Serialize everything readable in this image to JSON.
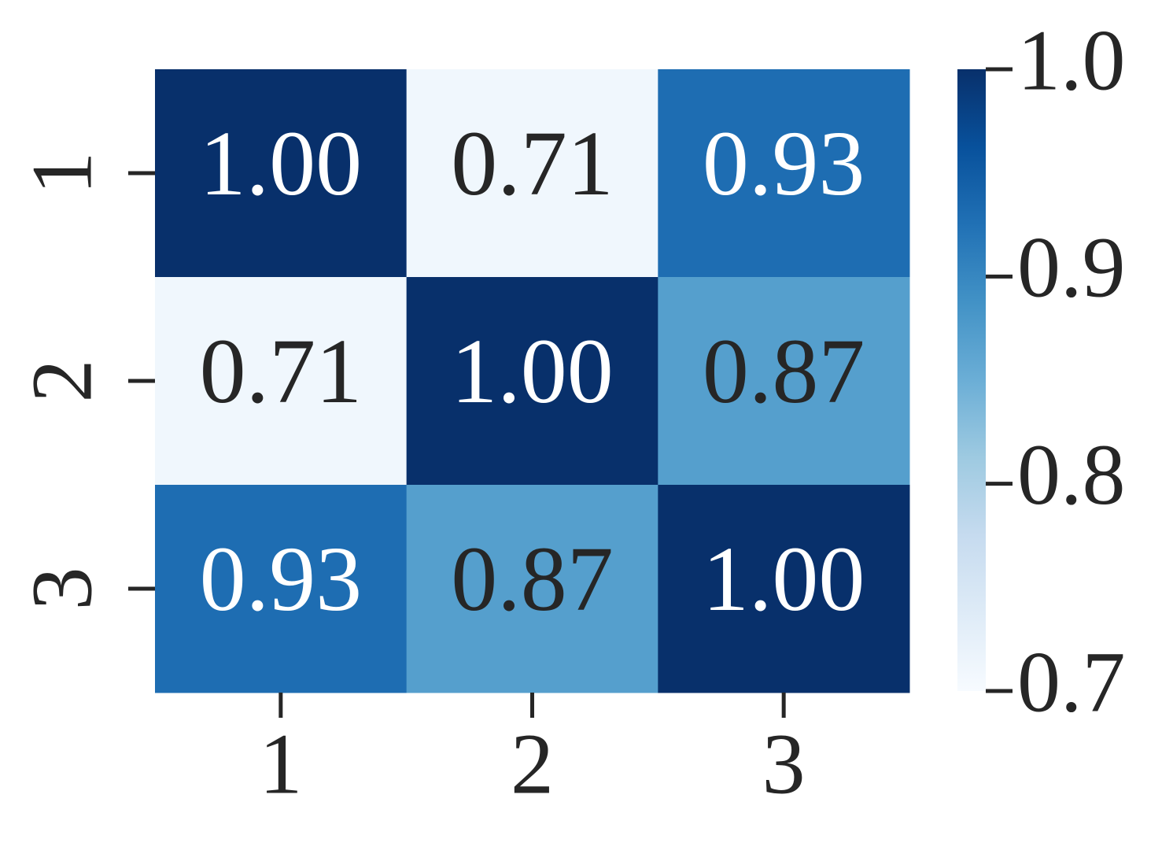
{
  "chart_data": {
    "type": "heatmap",
    "x_categories": [
      "1",
      "2",
      "3"
    ],
    "y_categories": [
      "1",
      "2",
      "3"
    ],
    "values": [
      [
        1.0,
        0.71,
        0.93
      ],
      [
        0.71,
        1.0,
        0.87
      ],
      [
        0.93,
        0.87,
        1.0
      ]
    ],
    "value_labels": [
      [
        "1.00",
        "0.71",
        "0.93"
      ],
      [
        "0.71",
        "1.00",
        "0.87"
      ],
      [
        "0.93",
        "0.87",
        "1.00"
      ]
    ],
    "colormap": [
      "#f7fbff",
      "#deebf7",
      "#c6dbef",
      "#9ecae1",
      "#6baed6",
      "#4292c6",
      "#2171b5",
      "#08519c",
      "#08306b"
    ],
    "clim": [
      0.7,
      1.0
    ],
    "cticks": [
      0.7,
      0.8,
      0.9,
      {
        "value": 1.0,
        "label": "1.0"
      }
    ]
  }
}
